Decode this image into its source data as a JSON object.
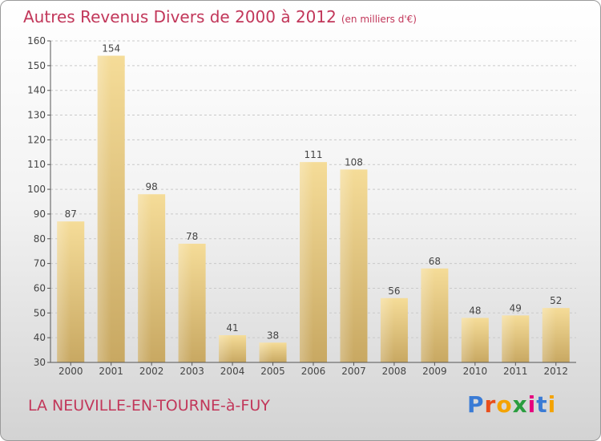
{
  "title": "Autres Revenus Divers de 2000 à 2012",
  "subtitle": "(en milliers d'€)",
  "location": "LA NEUVILLE-EN-TOURNE-à-FUY",
  "logo": {
    "letters": [
      "P",
      "r",
      "o",
      "x",
      "i",
      "t",
      "i"
    ],
    "colors": [
      "#3a7bd5",
      "#e94e1b",
      "#f4a300",
      "#2a9d3f",
      "#e6007e",
      "#3a7bd5",
      "#f4a300"
    ]
  },
  "chart_data": {
    "type": "bar",
    "categories": [
      "2000",
      "2001",
      "2002",
      "2003",
      "2004",
      "2005",
      "2006",
      "2007",
      "2008",
      "2009",
      "2010",
      "2011",
      "2012"
    ],
    "values": [
      87,
      154,
      98,
      78,
      41,
      38,
      111,
      108,
      56,
      68,
      48,
      49,
      52
    ],
    "ylim": [
      30,
      160
    ],
    "yticks": [
      30,
      40,
      50,
      60,
      70,
      80,
      90,
      100,
      110,
      120,
      130,
      140,
      150,
      160
    ],
    "grid": true,
    "bar_color": "#e6c97f"
  }
}
